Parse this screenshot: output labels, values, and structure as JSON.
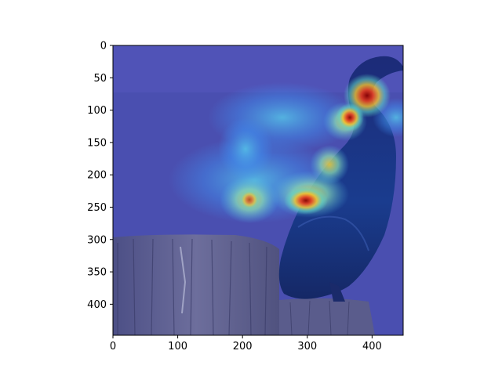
{
  "figure": {
    "background": "#ffffff",
    "image_description_icon": "heatmap-overlay-icon",
    "colormap": "jet",
    "overlay_base_color": "#4a4fb0"
  },
  "axes": {
    "x_ticks": [
      "0",
      "100",
      "200",
      "300",
      "400"
    ],
    "y_ticks": [
      "0",
      "50",
      "100",
      "150",
      "200",
      "250",
      "300",
      "350",
      "400"
    ],
    "x_range": [
      0,
      448
    ],
    "y_range": [
      0,
      448
    ]
  },
  "chart_data": {
    "type": "heatmap",
    "xlim": [
      0,
      448
    ],
    "ylim": [
      448,
      0
    ],
    "x_ticks": [
      0,
      100,
      200,
      300,
      400
    ],
    "y_ticks": [
      0,
      50,
      100,
      150,
      200,
      250,
      300,
      350,
      400
    ],
    "hotspots": [
      {
        "x": 395,
        "y": 80,
        "intensity": 1.0
      },
      {
        "x": 365,
        "y": 110,
        "intensity": 0.85
      },
      {
        "x": 300,
        "y": 238,
        "intensity": 0.9
      },
      {
        "x": 210,
        "y": 238,
        "intensity": 0.75
      },
      {
        "x": 270,
        "y": 240,
        "intensity": 0.7
      },
      {
        "x": 340,
        "y": 200,
        "intensity": 0.6
      },
      {
        "x": 210,
        "y": 175,
        "intensity": 0.45
      },
      {
        "x": 300,
        "y": 135,
        "intensity": 0.5
      },
      {
        "x": 430,
        "y": 110,
        "intensity": 0.45
      }
    ]
  }
}
